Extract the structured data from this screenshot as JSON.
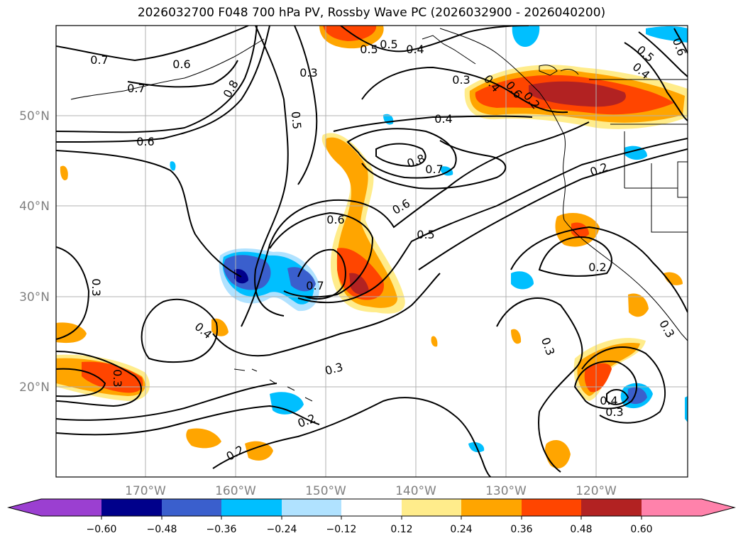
{
  "title": "2026032700 F048 700 hPa PV, Rossby Wave PC (2026032900 - 2026040200)",
  "colors": {
    "neg_060": "#9b3fd1",
    "neg_048": "#00008b",
    "neg_036": "#3a5fcd",
    "neg_024": "#00bfff",
    "neg_012": "#b0e2ff",
    "zero": "#ffffff",
    "pos_012": "#ffec8b",
    "pos_024": "#ffa500",
    "pos_036": "#ff4500",
    "pos_048": "#b22222",
    "pos_060": "#ff82ab",
    "grid": "#b0b0b0",
    "axis_label": "#808080"
  },
  "map": {
    "latitudes": [
      "20°N",
      "30°N",
      "40°N",
      "50°N"
    ],
    "longitudes": [
      "170°W",
      "160°W",
      "150°W",
      "140°W",
      "130°W",
      "120°W"
    ]
  },
  "contour_labels": [
    "0.7",
    "0.6",
    "0.7",
    "0.8",
    "0.3",
    "0.5",
    "0.4",
    "0.5",
    "0.3",
    "0.6",
    "0.8",
    "0.7",
    "0.6",
    "0.5",
    "0.4",
    "0.5",
    "0.6",
    "0.4",
    "0.3",
    "0.3",
    "0.4",
    "0.7",
    "0.6",
    "0.3",
    "0.2",
    "0.2",
    "0.3",
    "0.2",
    "0.3",
    "0.4",
    "0.3",
    "0.2",
    "0.4",
    "0.6",
    "0.2",
    "0.5"
  ],
  "colorbar": {
    "ticks": [
      "−0.60",
      "−0.48",
      "−0.36",
      "−0.24",
      "−0.12",
      "0.12",
      "0.24",
      "0.36",
      "0.48",
      "0.60"
    ]
  }
}
